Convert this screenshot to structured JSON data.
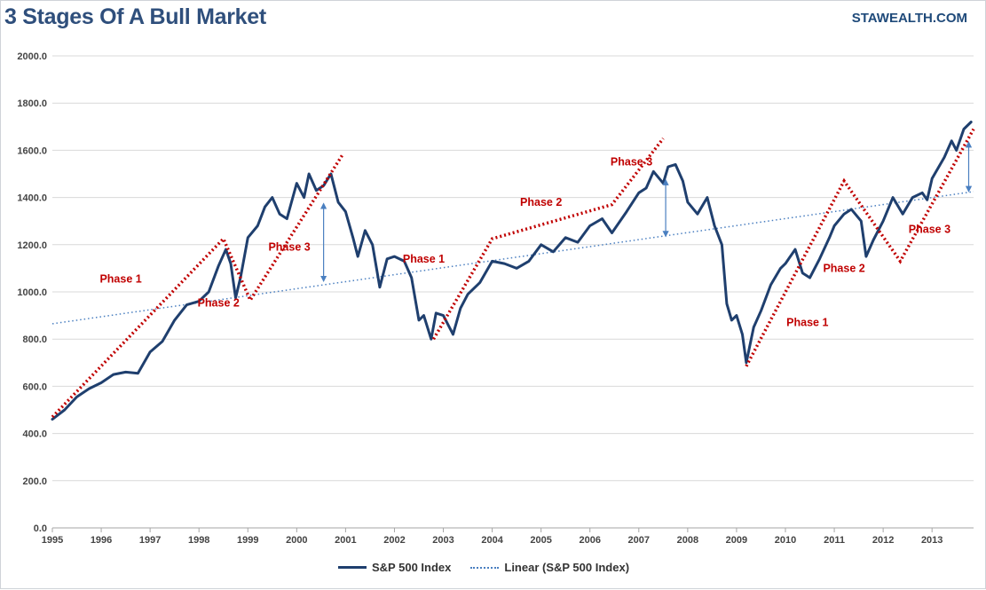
{
  "title": "3 Stages Of A Bull Market",
  "brand": "STAWEALTH.COM",
  "colors": {
    "index": "#1f3f6e",
    "trend": "#4a7fc0",
    "phase": "#c00000",
    "arrow": "#4a7fc0",
    "grid": "#d9d9d9"
  },
  "chart_data": {
    "type": "line",
    "title": "3 Stages Of A Bull Market",
    "xlim": [
      1995,
      2013.85
    ],
    "ylim": [
      0,
      2000
    ],
    "x_ticks": [
      1995,
      1996,
      1997,
      1998,
      1999,
      2000,
      2001,
      2002,
      2003,
      2004,
      2005,
      2006,
      2007,
      2008,
      2009,
      2010,
      2011,
      2012,
      2013
    ],
    "y_ticks": [
      0,
      200,
      400,
      600,
      800,
      1000,
      1200,
      1400,
      1600,
      1800,
      2000
    ],
    "y_tick_labels": [
      "0.0",
      "200.0",
      "400.0",
      "600.0",
      "800.0",
      "1000.0",
      "1200.0",
      "1400.0",
      "1600.0",
      "1800.0",
      "2000.0"
    ],
    "legend": [
      "S&P 500 Index",
      "Linear (S&P 500 Index)"
    ],
    "series": [
      {
        "name": "S&P 500 Index",
        "points": [
          [
            1995.0,
            460
          ],
          [
            1995.25,
            500
          ],
          [
            1995.5,
            555
          ],
          [
            1995.75,
            590
          ],
          [
            1996.0,
            615
          ],
          [
            1996.25,
            650
          ],
          [
            1996.5,
            660
          ],
          [
            1996.75,
            655
          ],
          [
            1997.0,
            745
          ],
          [
            1997.25,
            790
          ],
          [
            1997.5,
            880
          ],
          [
            1997.75,
            945
          ],
          [
            1998.0,
            960
          ],
          [
            1998.2,
            1000
          ],
          [
            1998.4,
            1110
          ],
          [
            1998.55,
            1180
          ],
          [
            1998.65,
            1120
          ],
          [
            1998.75,
            975
          ],
          [
            1998.85,
            1060
          ],
          [
            1999.0,
            1230
          ],
          [
            1999.2,
            1280
          ],
          [
            1999.35,
            1360
          ],
          [
            1999.5,
            1400
          ],
          [
            1999.65,
            1330
          ],
          [
            1999.8,
            1310
          ],
          [
            2000.0,
            1460
          ],
          [
            2000.15,
            1400
          ],
          [
            2000.25,
            1500
          ],
          [
            2000.4,
            1430
          ],
          [
            2000.55,
            1450
          ],
          [
            2000.7,
            1500
          ],
          [
            2000.85,
            1380
          ],
          [
            2001.0,
            1340
          ],
          [
            2001.15,
            1230
          ],
          [
            2001.25,
            1150
          ],
          [
            2001.4,
            1260
          ],
          [
            2001.55,
            1200
          ],
          [
            2001.7,
            1020
          ],
          [
            2001.85,
            1140
          ],
          [
            2002.0,
            1150
          ],
          [
            2002.2,
            1130
          ],
          [
            2002.35,
            1060
          ],
          [
            2002.5,
            880
          ],
          [
            2002.6,
            900
          ],
          [
            2002.75,
            800
          ],
          [
            2002.85,
            910
          ],
          [
            2003.0,
            900
          ],
          [
            2003.2,
            820
          ],
          [
            2003.35,
            930
          ],
          [
            2003.5,
            990
          ],
          [
            2003.75,
            1040
          ],
          [
            2004.0,
            1130
          ],
          [
            2004.25,
            1120
          ],
          [
            2004.5,
            1100
          ],
          [
            2004.75,
            1130
          ],
          [
            2005.0,
            1200
          ],
          [
            2005.25,
            1170
          ],
          [
            2005.5,
            1230
          ],
          [
            2005.75,
            1210
          ],
          [
            2006.0,
            1280
          ],
          [
            2006.25,
            1310
          ],
          [
            2006.45,
            1250
          ],
          [
            2006.75,
            1340
          ],
          [
            2007.0,
            1420
          ],
          [
            2007.15,
            1440
          ],
          [
            2007.3,
            1510
          ],
          [
            2007.5,
            1460
          ],
          [
            2007.6,
            1530
          ],
          [
            2007.75,
            1540
          ],
          [
            2007.9,
            1470
          ],
          [
            2008.0,
            1380
          ],
          [
            2008.2,
            1330
          ],
          [
            2008.4,
            1400
          ],
          [
            2008.55,
            1280
          ],
          [
            2008.7,
            1200
          ],
          [
            2008.8,
            950
          ],
          [
            2008.9,
            880
          ],
          [
            2009.0,
            900
          ],
          [
            2009.12,
            820
          ],
          [
            2009.2,
            700
          ],
          [
            2009.35,
            850
          ],
          [
            2009.5,
            920
          ],
          [
            2009.7,
            1030
          ],
          [
            2009.9,
            1100
          ],
          [
            2010.0,
            1120
          ],
          [
            2010.2,
            1180
          ],
          [
            2010.35,
            1080
          ],
          [
            2010.5,
            1060
          ],
          [
            2010.7,
            1140
          ],
          [
            2010.9,
            1230
          ],
          [
            2011.0,
            1280
          ],
          [
            2011.2,
            1330
          ],
          [
            2011.35,
            1350
          ],
          [
            2011.55,
            1300
          ],
          [
            2011.65,
            1150
          ],
          [
            2011.8,
            1220
          ],
          [
            2012.0,
            1300
          ],
          [
            2012.2,
            1400
          ],
          [
            2012.4,
            1330
          ],
          [
            2012.6,
            1400
          ],
          [
            2012.8,
            1420
          ],
          [
            2012.9,
            1390
          ],
          [
            2013.0,
            1480
          ],
          [
            2013.25,
            1570
          ],
          [
            2013.4,
            1640
          ],
          [
            2013.5,
            1600
          ],
          [
            2013.65,
            1690
          ],
          [
            2013.8,
            1720
          ]
        ]
      },
      {
        "name": "Linear (S&P 500 Index)",
        "points": [
          [
            1995.0,
            865
          ],
          [
            2013.85,
            1425
          ]
        ]
      }
    ],
    "phase_lines": [
      [
        [
          1995.0,
          470
        ],
        [
          1998.5,
          1225
        ],
        [
          1999.05,
          965
        ],
        [
          2000.95,
          1585
        ]
      ],
      [
        [
          2002.8,
          800
        ],
        [
          2004.0,
          1225
        ],
        [
          2006.45,
          1370
        ],
        [
          2007.5,
          1650
        ]
      ],
      [
        [
          2009.2,
          685
        ],
        [
          2011.2,
          1470
        ],
        [
          2012.35,
          1130
        ],
        [
          2013.85,
          1690
        ]
      ]
    ],
    "divergence_arrows": [
      [
        2000.55,
        1040,
        1380
      ],
      [
        2007.55,
        1230,
        1480
      ],
      [
        2013.75,
        1420,
        1640
      ]
    ],
    "annotations": [
      {
        "text": "Phase 1",
        "x": 1996.4,
        "y": 1040
      },
      {
        "text": "Phase 2",
        "x": 1998.4,
        "y": 938
      },
      {
        "text": "Phase 3",
        "x": 1999.85,
        "y": 1175
      },
      {
        "text": "Phase 1",
        "x": 2002.6,
        "y": 1125
      },
      {
        "text": "Phase 2",
        "x": 2005.0,
        "y": 1365
      },
      {
        "text": "Phase 3",
        "x": 2006.85,
        "y": 1535
      },
      {
        "text": "Phase 1",
        "x": 2010.45,
        "y": 855
      },
      {
        "text": "Phase 2",
        "x": 2011.2,
        "y": 1085
      },
      {
        "text": "Phase 3",
        "x": 2012.95,
        "y": 1250
      }
    ]
  }
}
